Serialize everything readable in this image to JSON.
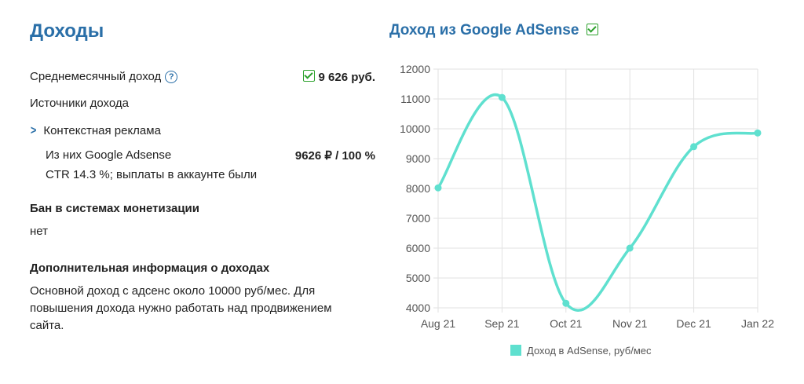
{
  "left": {
    "title": "Доходы",
    "avg_label": "Среднемесячный доход",
    "avg_value": "9 626 руб.",
    "sources_label": "Источники дохода",
    "source_item": "Контекстная реклама",
    "adsense_label": "Из них Google Adsense",
    "adsense_value": "9626 ₽  / 100 %",
    "ctr_text": "CTR 14.3 %; выплаты в аккаунте были",
    "ban_title": "Бан в системах монетизации",
    "ban_value": "нет",
    "extra_title": "Дополнительная информация о доходах",
    "extra_text": "Основной доход с адсенс около 10000 руб/мес. Для повышения дохода нужно работать над продвижением сайта."
  },
  "chart_title": "Доход из Google AdSense",
  "colors": {
    "accent": "#2a6fa8",
    "line": "#5fe0cf",
    "check": "#2ca12c"
  },
  "chart_data": {
    "type": "line",
    "title": "Доход из Google AdSense",
    "categories": [
      "Aug 21",
      "Sep 21",
      "Oct 21",
      "Nov 21",
      "Dec 21",
      "Jan 22"
    ],
    "series": [
      {
        "name": "Доход в AdSense, руб/мес",
        "values": [
          8020,
          11050,
          4150,
          6000,
          9400,
          9860
        ]
      }
    ],
    "yticks": [
      4000,
      5000,
      6000,
      7000,
      8000,
      9000,
      10000,
      11000,
      12000
    ],
    "ylim": [
      4000,
      12000
    ],
    "grid": true,
    "legend": "bottom"
  }
}
